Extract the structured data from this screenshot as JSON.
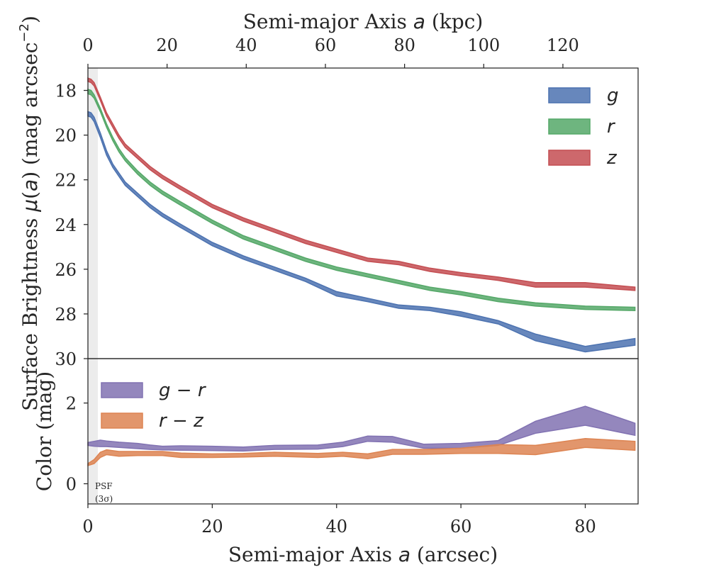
{
  "chart_data": [
    {
      "type": "area",
      "panel": "surface-brightness",
      "ylabel": "Surface Brightness μ(a) (mag arcsec⁻²)",
      "ylabel_parts": {
        "prefix": "Surface Brightness ",
        "mu": "μ",
        "paren": "(",
        "a": "a",
        "close": ") (mag arcsec",
        "sup": "−2",
        "end": ")"
      },
      "top_xlabel_parts": {
        "prefix": "Semi-major Axis ",
        "a": "a",
        "suffix": " (kpc)"
      },
      "ylim": [
        30,
        17
      ],
      "y_inverted": true,
      "xlim": [
        0,
        88.5
      ],
      "yticks": [
        18,
        20,
        22,
        24,
        26,
        28,
        30
      ],
      "top_xlim": [
        0,
        139
      ],
      "top_xticks": [
        0,
        20,
        40,
        60,
        80,
        100,
        120
      ],
      "legend_placement": "top-right",
      "grid": false,
      "psf_band": {
        "x_end": 1.6,
        "label_line1": "PSF",
        "label_line2": "(3σ)"
      },
      "series": [
        {
          "name": "g",
          "color": "#4C72B0",
          "x": [
            0,
            0.5,
            1,
            2,
            3,
            4,
            5,
            6,
            8,
            10,
            12,
            15,
            20,
            25,
            30,
            35,
            40,
            45,
            50,
            55,
            60,
            66,
            72,
            80,
            88
          ],
          "lower": [
            18.95,
            19.0,
            19.2,
            19.9,
            20.7,
            21.3,
            21.7,
            22.1,
            22.6,
            23.1,
            23.5,
            24.0,
            24.8,
            25.4,
            25.9,
            26.4,
            27.0,
            27.3,
            27.6,
            27.7,
            27.9,
            28.3,
            28.9,
            29.45,
            29.1
          ],
          "upper": [
            19.15,
            19.2,
            19.4,
            20.1,
            20.9,
            21.45,
            21.85,
            22.25,
            22.75,
            23.25,
            23.65,
            24.15,
            24.95,
            25.55,
            26.05,
            26.55,
            27.2,
            27.45,
            27.75,
            27.85,
            28.1,
            28.45,
            29.2,
            29.7,
            29.4
          ]
        },
        {
          "name": "r",
          "color": "#55A868",
          "x": [
            0,
            0.5,
            1,
            2,
            3,
            4,
            5,
            6,
            8,
            10,
            12,
            15,
            20,
            25,
            30,
            35,
            40,
            45,
            50,
            55,
            60,
            66,
            72,
            80,
            88
          ],
          "lower": [
            17.95,
            18.0,
            18.2,
            18.8,
            19.5,
            20.1,
            20.6,
            21.0,
            21.6,
            22.1,
            22.5,
            23.0,
            23.8,
            24.5,
            25.0,
            25.5,
            25.9,
            26.2,
            26.5,
            26.8,
            27.0,
            27.3,
            27.5,
            27.65,
            27.7
          ],
          "upper": [
            18.15,
            18.2,
            18.35,
            18.95,
            19.65,
            20.25,
            20.75,
            21.15,
            21.75,
            22.25,
            22.65,
            23.15,
            23.95,
            24.65,
            25.15,
            25.65,
            26.05,
            26.35,
            26.65,
            26.95,
            27.15,
            27.45,
            27.65,
            27.8,
            27.85
          ]
        },
        {
          "name": "z",
          "color": "#C44E52",
          "x": [
            0,
            0.5,
            1,
            2,
            3,
            4,
            5,
            6,
            8,
            10,
            12,
            15,
            20,
            25,
            30,
            35,
            40,
            45,
            50,
            55,
            60,
            66,
            72,
            80,
            88
          ],
          "lower": [
            17.45,
            17.5,
            17.65,
            18.3,
            19.0,
            19.5,
            20.0,
            20.4,
            20.9,
            21.4,
            21.8,
            22.3,
            23.1,
            23.7,
            24.2,
            24.7,
            25.1,
            25.5,
            25.65,
            25.95,
            26.15,
            26.35,
            26.6,
            26.6,
            26.8
          ],
          "upper": [
            17.6,
            17.65,
            17.8,
            18.45,
            19.15,
            19.65,
            20.15,
            20.55,
            21.05,
            21.55,
            21.95,
            22.45,
            23.25,
            23.85,
            24.35,
            24.85,
            25.25,
            25.65,
            25.8,
            26.1,
            26.3,
            26.5,
            26.8,
            26.8,
            26.95
          ]
        }
      ]
    },
    {
      "type": "area",
      "panel": "color",
      "ylabel": "Color (mag)",
      "xlabel_parts": {
        "prefix": "Semi-major Axis ",
        "a": "a",
        "suffix": " (arcsec)"
      },
      "xlim": [
        0,
        88.5
      ],
      "xticks": [
        0,
        20,
        40,
        60,
        80
      ],
      "ylim": [
        -0.5,
        3.1
      ],
      "yticks": [
        0,
        2
      ],
      "legend_placement": "top-left",
      "grid": false,
      "series": [
        {
          "name": "g − r",
          "label_parts": [
            "g",
            " − ",
            "r"
          ],
          "color": "#8172B2",
          "x": [
            0,
            1,
            2,
            3,
            5,
            8,
            10,
            12,
            15,
            20,
            25,
            30,
            37,
            41,
            45,
            49,
            54,
            60,
            66,
            72,
            80,
            88
          ],
          "lower": [
            0.95,
            0.93,
            0.92,
            0.92,
            0.9,
            0.87,
            0.85,
            0.84,
            0.83,
            0.82,
            0.81,
            0.85,
            0.86,
            0.92,
            1.05,
            1.03,
            0.88,
            0.88,
            0.95,
            1.25,
            1.45,
            1.2
          ],
          "upper": [
            1.02,
            1.05,
            1.08,
            1.06,
            1.03,
            1.0,
            0.96,
            0.93,
            0.94,
            0.93,
            0.91,
            0.95,
            0.96,
            1.03,
            1.18,
            1.17,
            0.98,
            1.0,
            1.07,
            1.55,
            1.92,
            1.5
          ]
        },
        {
          "name": "r − z",
          "label_parts": [
            "r",
            " − ",
            "z"
          ],
          "color": "#DD8452",
          "x": [
            0,
            1,
            2,
            3,
            5,
            8,
            10,
            12,
            15,
            20,
            25,
            30,
            37,
            41,
            45,
            49,
            54,
            60,
            66,
            72,
            80,
            88
          ],
          "lower": [
            0.45,
            0.5,
            0.65,
            0.72,
            0.68,
            0.7,
            0.7,
            0.7,
            0.65,
            0.65,
            0.66,
            0.68,
            0.65,
            0.68,
            0.62,
            0.73,
            0.73,
            0.75,
            0.75,
            0.72,
            0.9,
            0.83
          ],
          "upper": [
            0.5,
            0.6,
            0.78,
            0.84,
            0.8,
            0.8,
            0.8,
            0.8,
            0.76,
            0.74,
            0.75,
            0.78,
            0.75,
            0.78,
            0.74,
            0.85,
            0.85,
            0.88,
            0.97,
            0.95,
            1.12,
            1.05
          ]
        }
      ]
    }
  ]
}
